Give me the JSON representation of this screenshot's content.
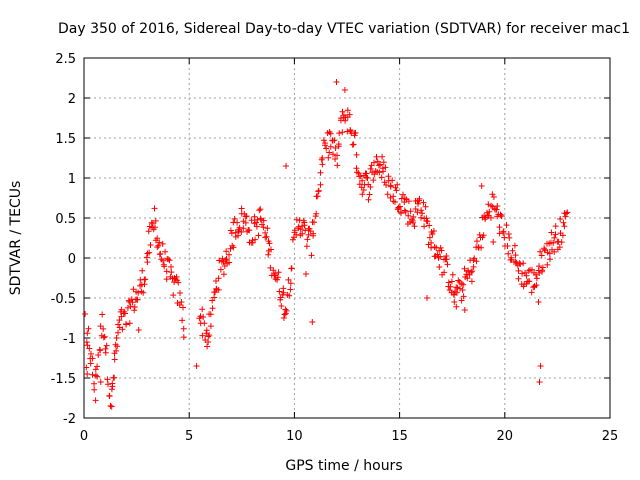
{
  "chart_data": {
    "type": "scatter",
    "title": "Day 350 of 2016, Sidereal Day-to-day VTEC variation (SDTVAR) for receiver mac1",
    "xlabel": "GPS time / hours",
    "ylabel": "SDTVAR / TECUs",
    "xlim": [
      0,
      25
    ],
    "ylim": [
      -2,
      2.5
    ],
    "xticks": [
      "0",
      "5",
      "10",
      "15",
      "20",
      "25"
    ],
    "yticks": [
      "-2",
      "-1.5",
      "-1",
      "-0.5",
      "0",
      "0.5",
      "1",
      "1.5",
      "2",
      "2.5"
    ],
    "grid": true,
    "marker": "plus",
    "series_color": "#ff0000",
    "series": [
      {
        "name": "SDTVAR",
        "trend": [
          [
            0.1,
            -1.3
          ],
          [
            0.2,
            -1.0
          ],
          [
            0.5,
            -1.6
          ],
          [
            0.9,
            -0.75
          ],
          [
            1.3,
            -1.85
          ],
          [
            1.4,
            -1.5
          ],
          [
            1.5,
            -1.2
          ],
          [
            1.7,
            -0.8
          ],
          [
            2.0,
            -0.8
          ],
          [
            2.3,
            -0.55
          ],
          [
            2.6,
            -0.45
          ],
          [
            2.9,
            -0.2
          ],
          [
            3.1,
            0.2
          ],
          [
            3.4,
            0.4
          ],
          [
            3.6,
            0.1
          ],
          [
            3.9,
            -0.1
          ],
          [
            4.2,
            -0.3
          ],
          [
            4.5,
            -0.45
          ],
          [
            4.8,
            -0.9
          ],
          [
            5.5,
            -0.7
          ],
          [
            5.9,
            -1.0
          ],
          [
            6.3,
            -0.3
          ],
          [
            6.6,
            -0.1
          ],
          [
            6.9,
            0.1
          ],
          [
            7.2,
            0.4
          ],
          [
            7.6,
            0.5
          ],
          [
            8.0,
            0.3
          ],
          [
            8.4,
            0.5
          ],
          [
            8.8,
            0.1
          ],
          [
            9.2,
            -0.3
          ],
          [
            9.6,
            -0.6
          ],
          [
            9.9,
            0.0
          ],
          [
            10.2,
            0.5
          ],
          [
            10.5,
            0.3
          ],
          [
            10.8,
            0.2
          ],
          [
            11.1,
            0.8
          ],
          [
            11.4,
            1.3
          ],
          [
            11.7,
            1.5
          ],
          [
            12.0,
            1.2
          ],
          [
            12.3,
            1.8
          ],
          [
            12.6,
            1.7
          ],
          [
            12.9,
            1.4
          ],
          [
            13.1,
            1.0
          ],
          [
            13.5,
            0.9
          ],
          [
            13.9,
            1.2
          ],
          [
            14.2,
            1.1
          ],
          [
            14.5,
            0.9
          ],
          [
            14.8,
            0.8
          ],
          [
            15.2,
            0.7
          ],
          [
            15.6,
            0.5
          ],
          [
            16.0,
            0.7
          ],
          [
            16.4,
            0.3
          ],
          [
            16.8,
            0.1
          ],
          [
            17.3,
            -0.2
          ],
          [
            17.7,
            -0.5
          ],
          [
            18.1,
            -0.3
          ],
          [
            18.5,
            -0.1
          ],
          [
            18.8,
            0.2
          ],
          [
            19.1,
            0.5
          ],
          [
            19.4,
            0.7
          ],
          [
            19.7,
            0.5
          ],
          [
            20.0,
            0.3
          ],
          [
            20.3,
            0.1
          ],
          [
            20.6,
            -0.1
          ],
          [
            21.0,
            -0.25
          ],
          [
            21.4,
            -0.3
          ],
          [
            21.8,
            0.0
          ],
          [
            22.3,
            0.2
          ],
          [
            22.7,
            0.35
          ],
          [
            23.0,
            0.5
          ]
        ],
        "outliers": [
          [
            0.05,
            -0.7
          ],
          [
            0.15,
            -1.45
          ],
          [
            0.55,
            -1.78
          ],
          [
            0.8,
            -1.55
          ],
          [
            1.55,
            -1.0
          ],
          [
            2.6,
            -0.9
          ],
          [
            3.35,
            0.62
          ],
          [
            5.35,
            -1.35
          ],
          [
            5.9,
            -1.05
          ],
          [
            9.5,
            -0.75
          ],
          [
            9.6,
            1.15
          ],
          [
            10.85,
            -0.8
          ],
          [
            10.55,
            -0.2
          ],
          [
            12.0,
            2.2
          ],
          [
            12.4,
            2.1
          ],
          [
            13.3,
            0.85
          ],
          [
            16.3,
            -0.5
          ],
          [
            17.6,
            -0.55
          ],
          [
            18.1,
            -0.65
          ],
          [
            21.65,
            -1.55
          ],
          [
            21.7,
            -1.35
          ],
          [
            21.6,
            -0.55
          ],
          [
            18.9,
            0.9
          ],
          [
            19.45,
            0.2
          ]
        ]
      }
    ]
  }
}
